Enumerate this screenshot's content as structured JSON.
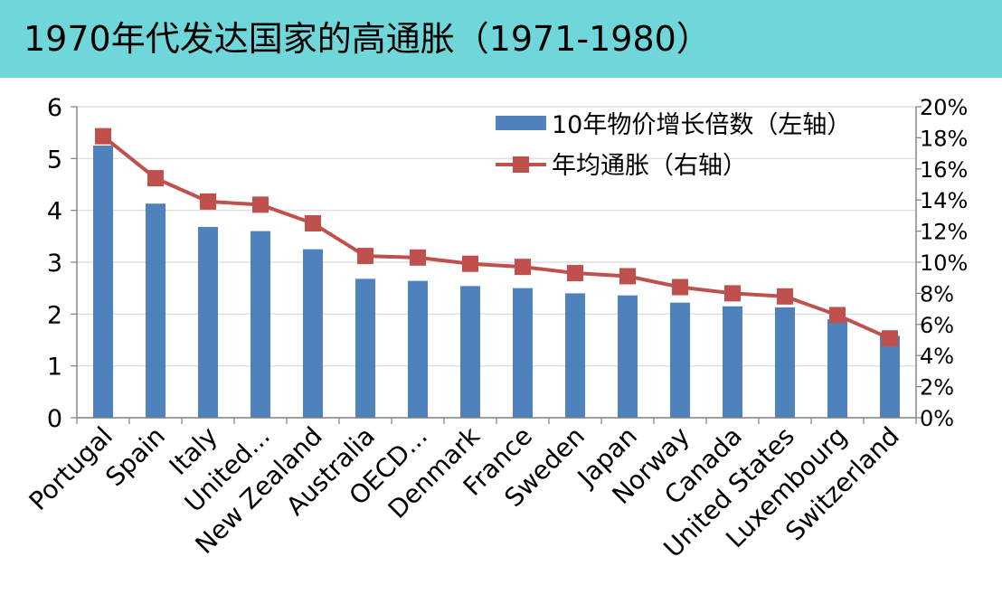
{
  "title": "1970年代发达国家的高通胀（1971-1980）",
  "colors": {
    "band": "#6fd6d9",
    "bar": "#4f81bd",
    "line": "#c0504d",
    "grid": "#d9d9d9",
    "axis": "#808080"
  },
  "chart_data": {
    "type": "bar",
    "title": "1970年代发达国家的高通胀（1971-1980）",
    "categories": [
      "Portugal",
      "Spain",
      "Italy",
      "United...",
      "New Zealand",
      "Australia",
      "OECD...",
      "Denmark",
      "France",
      "Sweden",
      "Japan",
      "Norway",
      "Canada",
      "United States",
      "Luxembourg",
      "Switzerland"
    ],
    "series": [
      {
        "name": "10年物价增长倍数（左轴）",
        "type": "bar",
        "axis": "left",
        "values": [
          5.25,
          4.13,
          3.68,
          3.6,
          3.25,
          2.68,
          2.64,
          2.54,
          2.5,
          2.4,
          2.36,
          2.22,
          2.15,
          2.13,
          1.9,
          1.58
        ]
      },
      {
        "name": "年均通胀（右轴）",
        "type": "line",
        "axis": "right",
        "values": [
          0.181,
          0.154,
          0.139,
          0.137,
          0.125,
          0.104,
          0.103,
          0.099,
          0.097,
          0.093,
          0.091,
          0.084,
          0.08,
          0.078,
          0.066,
          0.051
        ]
      }
    ],
    "y_left": {
      "ylim": [
        0,
        6
      ],
      "ticks": [
        "0",
        "1",
        "2",
        "3",
        "4",
        "5",
        "6"
      ]
    },
    "y_right": {
      "ylim": [
        0,
        0.2
      ],
      "ticks": [
        "0%",
        "2%",
        "4%",
        "6%",
        "8%",
        "10%",
        "12%",
        "14%",
        "16%",
        "18%",
        "20%"
      ]
    },
    "grid": true,
    "legend": "top-right",
    "xlabel": "",
    "ylabel": ""
  }
}
